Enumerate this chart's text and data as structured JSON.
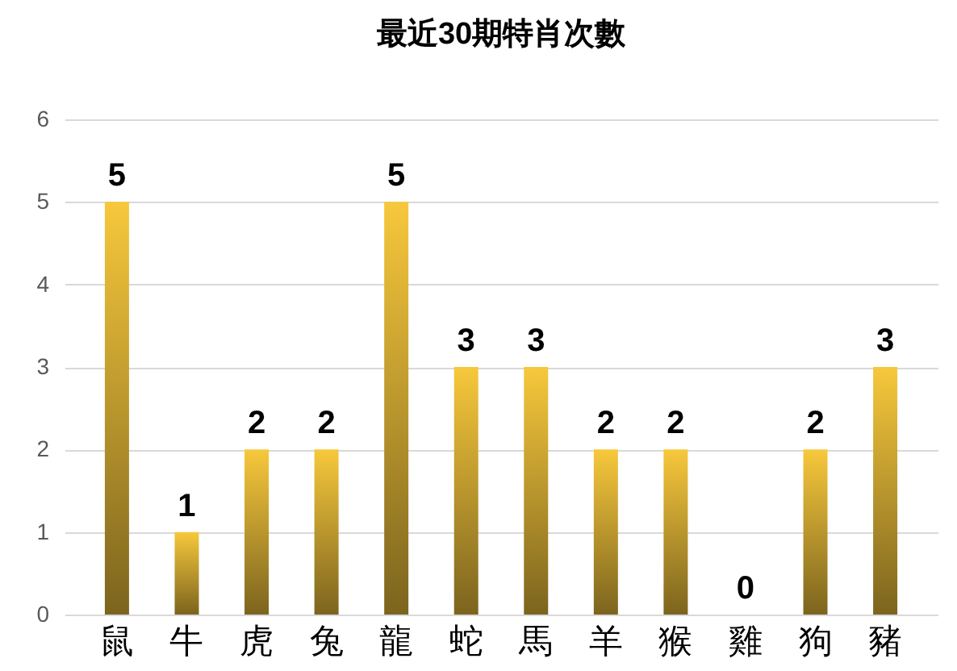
{
  "chart_data": {
    "type": "bar",
    "title": "最近30期特肖次數",
    "categories": [
      "鼠",
      "牛",
      "虎",
      "兔",
      "龍",
      "蛇",
      "馬",
      "羊",
      "猴",
      "雞",
      "狗",
      "豬"
    ],
    "values": [
      5,
      1,
      2,
      2,
      5,
      3,
      3,
      2,
      2,
      0,
      2,
      3
    ],
    "color": "#f7c83c",
    "ylim": [
      0,
      6
    ],
    "yticks": [
      0,
      1,
      2,
      3,
      4,
      5,
      6
    ],
    "grid": "y",
    "data_labels": true
  }
}
